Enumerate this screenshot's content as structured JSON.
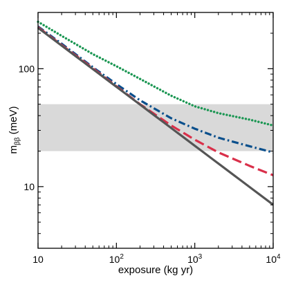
{
  "chart_data": {
    "type": "line",
    "xlabel": "exposure (kg yr)",
    "ylabel": {
      "main": "m",
      "sub": "ββ",
      "unit": " (meV)"
    },
    "xscale": "log",
    "yscale": "log",
    "xlim": [
      10,
      10000
    ],
    "ylim": [
      3,
      300
    ],
    "x_ticks": [
      {
        "value": 10,
        "base": "10",
        "exp": ""
      },
      {
        "value": 100,
        "base": "10",
        "exp": "2"
      },
      {
        "value": 1000,
        "base": "10",
        "exp": "3"
      },
      {
        "value": 10000,
        "base": "10",
        "exp": "4"
      }
    ],
    "y_ticks": [
      {
        "value": 10,
        "label": "10"
      },
      {
        "value": 100,
        "label": "100"
      }
    ],
    "band": {
      "y_range": [
        20,
        50
      ],
      "color": "#d9d9d9"
    },
    "grid": false,
    "legend": "none",
    "series": [
      {
        "style": "dotted",
        "color": "#1a9652",
        "x": [
          10,
          20,
          50,
          100,
          200,
          500,
          1000,
          2000,
          5000,
          10000
        ],
        "y": [
          250,
          190,
          133,
          105,
          82,
          59,
          48,
          42,
          37,
          33
        ]
      },
      {
        "style": "dash-dot",
        "color": "#0a4f8c",
        "x": [
          10,
          20,
          50,
          100,
          200,
          500,
          1000,
          2000,
          5000,
          10000
        ],
        "y": [
          228,
          163,
          103,
          74,
          54,
          38,
          31,
          26,
          22,
          19.5
        ]
      },
      {
        "style": "dashed",
        "color": "#d9304a",
        "x": [
          10,
          20,
          50,
          100,
          200,
          500,
          1000,
          2000,
          5000,
          10000
        ],
        "y": [
          225,
          159,
          101,
          71,
          50,
          33,
          25,
          19.5,
          15,
          12.5
        ]
      },
      {
        "style": "solid",
        "color": "#555555",
        "x": [
          10,
          100,
          1000,
          10000
        ],
        "y": [
          222,
          70.2,
          22.2,
          7.02
        ]
      }
    ]
  }
}
